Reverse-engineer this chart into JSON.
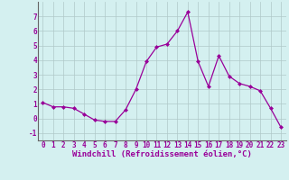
{
  "x": [
    0,
    1,
    2,
    3,
    4,
    5,
    6,
    7,
    8,
    9,
    10,
    11,
    12,
    13,
    14,
    15,
    16,
    17,
    18,
    19,
    20,
    21,
    22,
    23
  ],
  "y": [
    1.1,
    0.8,
    0.8,
    0.7,
    0.3,
    -0.1,
    -0.2,
    -0.2,
    0.6,
    2.0,
    3.9,
    4.9,
    5.1,
    6.0,
    7.3,
    3.9,
    2.2,
    4.3,
    2.9,
    2.4,
    2.2,
    1.9,
    0.7,
    -0.6
  ],
  "line_color": "#990099",
  "marker": "D",
  "marker_size": 2,
  "background_color": "#d4f0f0",
  "grid_color": "#b0c8c8",
  "xlabel": "Windchill (Refroidissement éolien,°C)",
  "xlabel_fontsize": 6.5,
  "tick_fontsize": 5.5,
  "ylim": [
    -1.5,
    8.0
  ],
  "xlim": [
    -0.5,
    23.5
  ],
  "yticks": [
    -1,
    0,
    1,
    2,
    3,
    4,
    5,
    6,
    7
  ],
  "xticks": [
    0,
    1,
    2,
    3,
    4,
    5,
    6,
    7,
    8,
    9,
    10,
    11,
    12,
    13,
    14,
    15,
    16,
    17,
    18,
    19,
    20,
    21,
    22,
    23
  ]
}
